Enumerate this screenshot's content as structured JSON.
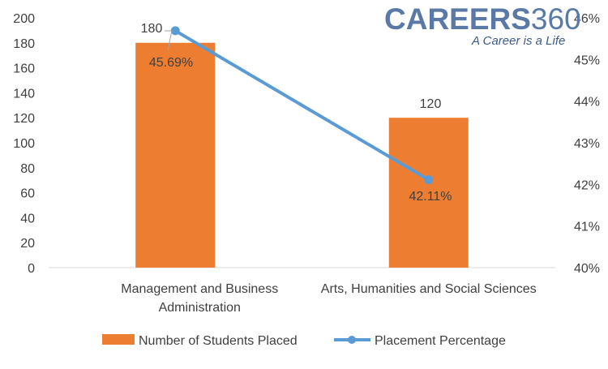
{
  "brand": {
    "logo_main": "CAREERS",
    "logo_num": "360",
    "tagline": "A Career is a Life"
  },
  "colors": {
    "bar": "#ed7d31",
    "line": "#5b9bd5",
    "axis": "#d9d9d9",
    "text": "#404040"
  },
  "chart_data": {
    "type": "bar",
    "categories": [
      "Management and Business Administration",
      "Arts, Humanities and Social Sciences"
    ],
    "category_lines": [
      [
        "Management and Business",
        "Administration"
      ],
      [
        "Arts, Humanities and Social Sciences"
      ]
    ],
    "series": [
      {
        "name": "Number of Students Placed",
        "type": "bar",
        "axis": "left",
        "values": [
          180,
          120
        ],
        "labels": [
          "180",
          "120"
        ]
      },
      {
        "name": "Placement Percentage",
        "type": "line",
        "axis": "right",
        "values": [
          45.69,
          42.11
        ],
        "labels": [
          "45.69%",
          "42.11%"
        ]
      }
    ],
    "ylim_left": [
      0,
      200
    ],
    "yticks_left": [
      "0",
      "20",
      "40",
      "60",
      "80",
      "100",
      "120",
      "140",
      "160",
      "180",
      "200"
    ],
    "ylim_right": [
      40,
      46
    ],
    "yticks_right": [
      "40%",
      "41%",
      "42%",
      "43%",
      "44%",
      "45%",
      "46%"
    ],
    "grid": false,
    "legend_position": "bottom"
  }
}
